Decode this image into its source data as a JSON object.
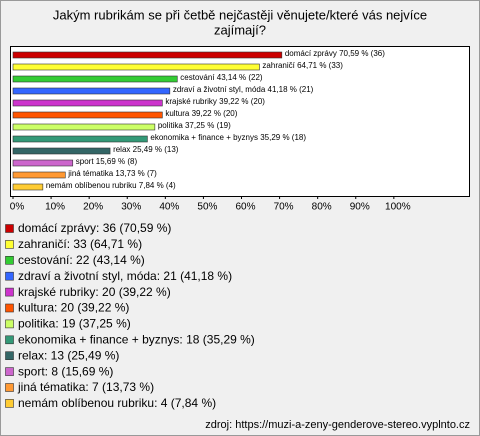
{
  "chart_data": {
    "type": "bar",
    "orientation": "horizontal",
    "title": [
      "Jakým rubrikám se při četbě nejčastěji věnujete/které vás nejvíce",
      "zajímají?"
    ],
    "values": [
      70.59,
      64.71,
      43.14,
      41.18,
      39.22,
      39.22,
      37.25,
      35.29,
      25.49,
      15.69,
      13.73,
      7.84
    ],
    "value_labels": [
      "domácí zprávy 70,59 % (36)",
      "zahraničí 64,71 % (33)",
      "cestování 43,14 % (22)",
      "zdraví a životní styl, móda 41,18 % (21)",
      "krajské rubriky 39,22 % (20)",
      "kultura 39,22 % (20)",
      "politika 37,25 % (19)",
      "ekonomika + finance + byznys 35,29 % (18)",
      "relax 25,49 % (13)",
      "sport 15,69 % (8)",
      "jiná tématika 13,73 % (7)",
      "nemám oblíbenou rubriku 7,84 % (4)"
    ],
    "legend_labels": [
      "domácí zprávy: 36 (70,59 %)",
      "zahraničí: 33 (64,71 %)",
      "cestování: 22 (43,14 %)",
      "zdraví a životní styl, móda: 21 (41,18 %)",
      "krajské rubriky: 20 (39,22 %)",
      "kultura: 20 (39,22 %)",
      "politika: 19 (37,25 %)",
      "ekonomika + finance + byznys: 18 (35,29 %)",
      "relax: 13 (25,49 %)",
      "sport: 8 (15,69 %)",
      "jiná tématika: 7 (13,73 %)",
      "nemám oblíbenou rubriku: 4 (7,84 %)"
    ],
    "colors": [
      "#cc0000",
      "#ffff33",
      "#33cc33",
      "#3366ff",
      "#cc33cc",
      "#ff5500",
      "#ccff66",
      "#339977",
      "#336666",
      "#cc66cc",
      "#ff9933",
      "#ffcc33"
    ],
    "xlim": [
      0,
      120
    ],
    "xticks": [
      {
        "value": 0,
        "label": "0%"
      },
      {
        "value": 10,
        "label": "10%"
      },
      {
        "value": 20,
        "label": "20%"
      },
      {
        "value": 30,
        "label": "30%"
      },
      {
        "value": 40,
        "label": "40%"
      },
      {
        "value": 50,
        "label": "50%"
      },
      {
        "value": 60,
        "label": "60%"
      },
      {
        "value": 70,
        "label": "70%"
      },
      {
        "value": 80,
        "label": "80%"
      },
      {
        "value": 90,
        "label": "90%"
      },
      {
        "value": 100,
        "label": "100%"
      }
    ],
    "source": "zdroj: https://muzi-a-zeny-genderove-stereo.vyplnto.cz"
  }
}
